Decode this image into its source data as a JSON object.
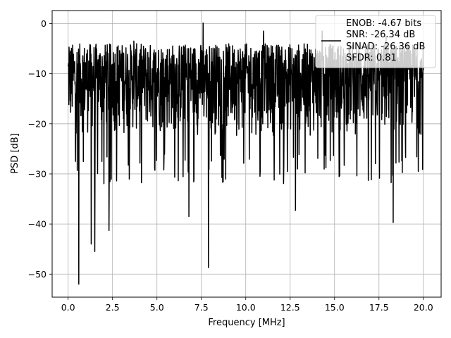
{
  "chart_data": {
    "type": "line",
    "title": "",
    "xlabel": "Frequency [MHz]",
    "ylabel": "PSD [dB]",
    "xlim": [
      -0.9,
      21.0
    ],
    "ylim": [
      -54.6,
      2.6
    ],
    "x_ticks": [
      0.0,
      2.5,
      5.0,
      7.5,
      10.0,
      12.5,
      15.0,
      17.5,
      20.0
    ],
    "x_tick_labels": [
      "0.0",
      "2.5",
      "5.0",
      "7.5",
      "10.0",
      "12.5",
      "15.0",
      "17.5",
      "20.0"
    ],
    "y_ticks": [
      0,
      -10,
      -20,
      -30,
      -40,
      -50
    ],
    "y_tick_labels": [
      "0",
      "−10",
      "−20",
      "−30",
      "−40",
      "−50"
    ],
    "grid": true,
    "legend_position": "top-right",
    "legend": {
      "lines": [
        "ENOB: -4.67 bits",
        "SNR: -26.34 dB",
        "SINAD: -26.36 dB",
        "SFDR: 0.81"
      ]
    },
    "series": [
      {
        "color": "#000000",
        "noise_band_db": [
          -26,
          -4
        ],
        "x_range": [
          0.0,
          20.0
        ],
        "peaks": [
          {
            "x": 0.05,
            "y": -4.7
          },
          {
            "x": 1.6,
            "y": -5.0
          },
          {
            "x": 3.7,
            "y": -3.5
          },
          {
            "x": 7.6,
            "y": 0.1
          },
          {
            "x": 11.0,
            "y": -1.5
          },
          {
            "x": 14.3,
            "y": -1.5
          },
          {
            "x": 17.9,
            "y": -2.5
          }
        ],
        "dips": [
          {
            "x": 0.6,
            "y": -52.0
          },
          {
            "x": 1.3,
            "y": -44.0
          },
          {
            "x": 1.5,
            "y": -45.5
          },
          {
            "x": 2.3,
            "y": -41.3
          },
          {
            "x": 6.8,
            "y": -38.5
          },
          {
            "x": 7.9,
            "y": -48.7
          },
          {
            "x": 12.8,
            "y": -37.3
          },
          {
            "x": 18.3,
            "y": -39.7
          }
        ]
      }
    ]
  }
}
